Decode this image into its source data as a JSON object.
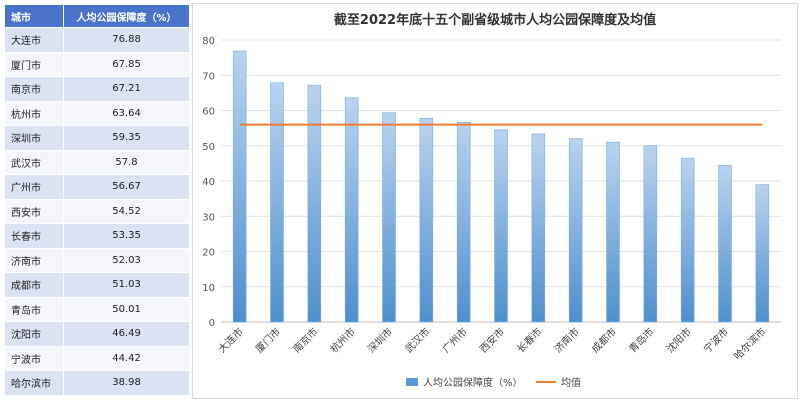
{
  "table": {
    "headers": [
      "城市",
      "人均公园保障度（%）"
    ],
    "rows": [
      [
        "大连市",
        "76.88"
      ],
      [
        "厦门市",
        "67.85"
      ],
      [
        "南京市",
        "67.21"
      ],
      [
        "杭州市",
        "63.64"
      ],
      [
        "深圳市",
        "59.35"
      ],
      [
        "武汉市",
        "57.8"
      ],
      [
        "广州市",
        "56.67"
      ],
      [
        "西安市",
        "54.52"
      ],
      [
        "长春市",
        "53.35"
      ],
      [
        "济南市",
        "52.03"
      ],
      [
        "成都市",
        "51.03"
      ],
      [
        "青岛市",
        "50.01"
      ],
      [
        "沈阳市",
        "46.49"
      ],
      [
        "宁波市",
        "44.42"
      ],
      [
        "哈尔滨市",
        "38.98"
      ]
    ]
  },
  "chart_data": {
    "type": "bar",
    "title": "截至2022年底十五个副省级城市人均公园保障度及均值",
    "categories": [
      "大连市",
      "厦门市",
      "南京市",
      "杭州市",
      "深圳市",
      "武汉市",
      "广州市",
      "西安市",
      "长春市",
      "济南市",
      "成都市",
      "青岛市",
      "沈阳市",
      "宁波市",
      "哈尔滨市"
    ],
    "series": [
      {
        "name": "人均公园保障度（%）",
        "type": "bar",
        "values": [
          76.88,
          67.85,
          67.21,
          63.64,
          59.35,
          57.8,
          56.67,
          54.52,
          53.35,
          52.03,
          51.03,
          50.01,
          46.49,
          44.42,
          38.98
        ],
        "color": "#5b9bd5"
      },
      {
        "name": "均值",
        "type": "line",
        "values": [
          56.0,
          56.0,
          56.0,
          56.0,
          56.0,
          56.0,
          56.0,
          56.0,
          56.0,
          56.0,
          56.0,
          56.0,
          56.0,
          56.0,
          56.0
        ],
        "color": "#ed7d31"
      }
    ],
    "ylim": [
      0,
      80
    ],
    "yticks": [
      0,
      10,
      20,
      30,
      40,
      50,
      60,
      70,
      80
    ],
    "grid": true,
    "legend": "bottom"
  }
}
